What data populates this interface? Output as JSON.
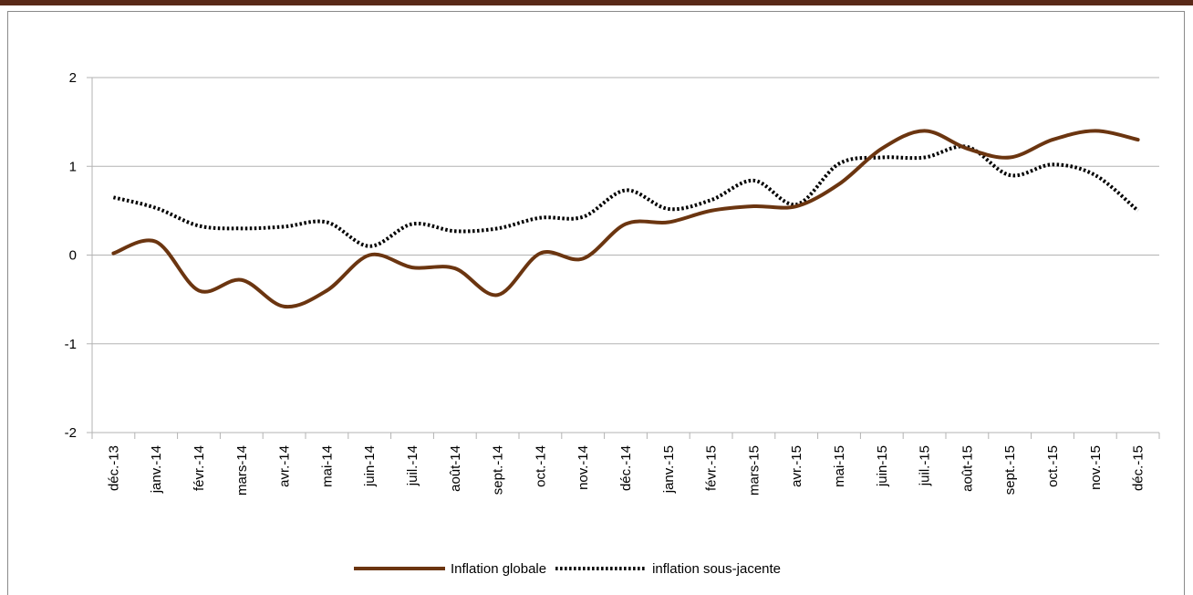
{
  "chart_data": {
    "type": "line",
    "title": "",
    "xlabel": "",
    "ylabel": "",
    "ylim": [
      -2,
      2
    ],
    "yticks": [
      2,
      1,
      0,
      -1,
      -2
    ],
    "grid": "horizontal",
    "legend_position": "bottom",
    "categories": [
      "déc.-13",
      "janv.-14",
      "févr.-14",
      "mars-14",
      "avr.-14",
      "mai-14",
      "juin-14",
      "juil.-14",
      "août-14",
      "sept.-14",
      "oct.-14",
      "nov.-14",
      "déc.-14",
      "janv.-15",
      "févr.-15",
      "mars-15",
      "avr.-15",
      "mai-15",
      "juin-15",
      "juil.-15",
      "août-15",
      "sept.-15",
      "oct.-15",
      "nov.-15",
      "déc.-15"
    ],
    "series": [
      {
        "name": "Inflation globale",
        "color": "#6b3510",
        "style": "solid",
        "values": [
          0.02,
          0.15,
          -0.4,
          -0.28,
          -0.58,
          -0.4,
          0.0,
          -0.14,
          -0.15,
          -0.45,
          0.02,
          -0.04,
          0.35,
          0.37,
          0.5,
          0.55,
          0.55,
          0.8,
          1.2,
          1.4,
          1.2,
          1.1,
          1.3,
          1.4,
          1.3
        ]
      },
      {
        "name": "inflation sous-jacente",
        "color": "#000000",
        "style": "dotted",
        "values": [
          0.65,
          0.53,
          0.33,
          0.3,
          0.32,
          0.37,
          0.1,
          0.35,
          0.27,
          0.3,
          0.42,
          0.43,
          0.73,
          0.52,
          0.62,
          0.84,
          0.57,
          1.03,
          1.1,
          1.1,
          1.22,
          0.9,
          1.02,
          0.9,
          0.5
        ]
      }
    ]
  }
}
